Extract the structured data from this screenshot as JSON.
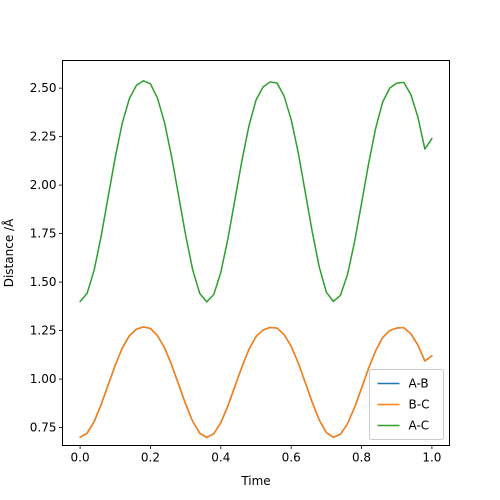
{
  "chart_data": {
    "type": "line",
    "title": "",
    "xlabel": "Time",
    "ylabel": "Distance /Å",
    "xlim": [
      -0.05,
      1.05
    ],
    "ylim": [
      0.6575,
      2.6425
    ],
    "xticks": [
      0.0,
      0.2,
      0.4,
      0.6,
      0.8,
      1.0
    ],
    "xtick_labels": [
      "0.0",
      "0.2",
      "0.4",
      "0.6",
      "0.8",
      "1.0"
    ],
    "yticks": [
      0.75,
      1.0,
      1.25,
      1.5,
      1.75,
      2.0,
      2.25,
      2.5
    ],
    "ytick_labels": [
      "0.75",
      "1.00",
      "1.25",
      "1.50",
      "1.75",
      "2.00",
      "2.25",
      "2.50"
    ],
    "grid": false,
    "legend_position": "lower-right",
    "x": [
      0.0,
      0.02,
      0.04,
      0.06,
      0.08,
      0.1,
      0.12,
      0.14,
      0.16,
      0.18,
      0.2,
      0.22,
      0.24,
      0.26,
      0.28,
      0.3,
      0.32,
      0.34,
      0.36,
      0.38,
      0.4,
      0.42,
      0.44,
      0.46,
      0.48,
      0.5,
      0.52,
      0.54,
      0.56,
      0.58,
      0.6,
      0.62,
      0.64,
      0.66,
      0.68,
      0.7,
      0.72,
      0.74,
      0.76,
      0.78,
      0.8,
      0.82,
      0.84,
      0.86,
      0.88,
      0.9,
      0.92,
      0.94,
      0.96,
      0.98,
      1.0
    ],
    "series": [
      {
        "name": "A-B",
        "color": "#1f77b4",
        "values": [
          0.7,
          0.721,
          0.781,
          0.869,
          0.971,
          1.072,
          1.16,
          1.223,
          1.257,
          1.269,
          1.261,
          1.224,
          1.161,
          1.074,
          0.973,
          0.871,
          0.782,
          0.721,
          0.699,
          0.718,
          0.775,
          0.861,
          0.962,
          1.063,
          1.153,
          1.219,
          1.253,
          1.266,
          1.263,
          1.229,
          1.169,
          1.084,
          0.982,
          0.879,
          0.788,
          0.724,
          0.7,
          0.716,
          0.769,
          0.853,
          0.953,
          1.055,
          1.146,
          1.214,
          1.25,
          1.263,
          1.265,
          1.234,
          1.176,
          1.093,
          1.12
        ]
      },
      {
        "name": "B-C",
        "color": "#ff7f0e",
        "values": [
          0.7,
          0.721,
          0.781,
          0.869,
          0.971,
          1.072,
          1.16,
          1.223,
          1.257,
          1.269,
          1.261,
          1.224,
          1.161,
          1.074,
          0.973,
          0.871,
          0.782,
          0.721,
          0.699,
          0.718,
          0.775,
          0.861,
          0.962,
          1.063,
          1.153,
          1.219,
          1.253,
          1.266,
          1.263,
          1.229,
          1.169,
          1.084,
          0.982,
          0.879,
          0.788,
          0.724,
          0.7,
          0.716,
          0.769,
          0.853,
          0.953,
          1.055,
          1.146,
          1.214,
          1.25,
          1.263,
          1.265,
          1.234,
          1.176,
          1.093,
          1.12
        ]
      },
      {
        "name": "A-C",
        "color": "#2ca02c",
        "values": [
          1.4,
          1.442,
          1.562,
          1.738,
          1.942,
          2.144,
          2.32,
          2.446,
          2.514,
          2.538,
          2.522,
          2.448,
          2.322,
          2.148,
          1.946,
          1.742,
          1.564,
          1.442,
          1.398,
          1.436,
          1.55,
          1.722,
          1.924,
          2.126,
          2.306,
          2.438,
          2.506,
          2.532,
          2.526,
          2.458,
          2.338,
          2.168,
          1.964,
          1.758,
          1.576,
          1.448,
          1.4,
          1.432,
          1.538,
          1.706,
          1.906,
          2.11,
          2.292,
          2.428,
          2.5,
          2.526,
          2.53,
          2.468,
          2.352,
          2.186,
          2.24
        ]
      }
    ]
  }
}
